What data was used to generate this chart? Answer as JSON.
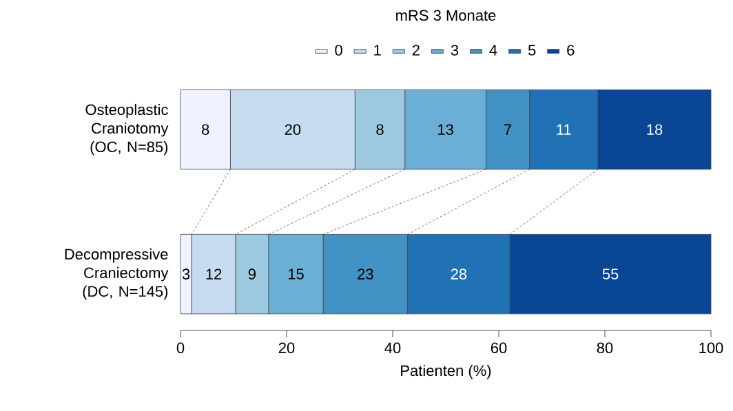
{
  "chart_data": {
    "type": "bar",
    "orientation": "horizontal",
    "stacked": true,
    "legend_title": "mRS 3 Monate",
    "xlabel": "Patienten   (%)",
    "categories": [
      "Osteoplastic Craniotomy (OC, N=85)",
      "Decompressive Craniectomy (DC, N=145)"
    ],
    "series": [
      {
        "name": "0",
        "color": "#eff3ff",
        "values": [
          9.4,
          2.1
        ]
      },
      {
        "name": "1",
        "color": "#c6dbef",
        "values": [
          23.5,
          8.3
        ]
      },
      {
        "name": "2",
        "color": "#9ecae1",
        "values": [
          9.4,
          6.2
        ]
      },
      {
        "name": "3",
        "color": "#6baed6",
        "values": [
          15.3,
          10.3
        ]
      },
      {
        "name": "4",
        "color": "#4292c6",
        "values": [
          8.2,
          15.9
        ]
      },
      {
        "name": "5",
        "color": "#2171b5",
        "values": [
          12.9,
          19.3
        ]
      },
      {
        "name": "6",
        "color": "#084594",
        "values": [
          21.3,
          37.9
        ]
      }
    ],
    "annotations": [
      "8",
      "20",
      "8",
      "13",
      "7",
      "11",
      "18",
      "3",
      "12",
      "9",
      "15",
      "23",
      "28",
      "55"
    ],
    "xlim": [
      0,
      100
    ],
    "xticks": [
      0,
      20,
      40,
      60,
      80,
      100
    ],
    "legend": "top",
    "grid": false
  }
}
